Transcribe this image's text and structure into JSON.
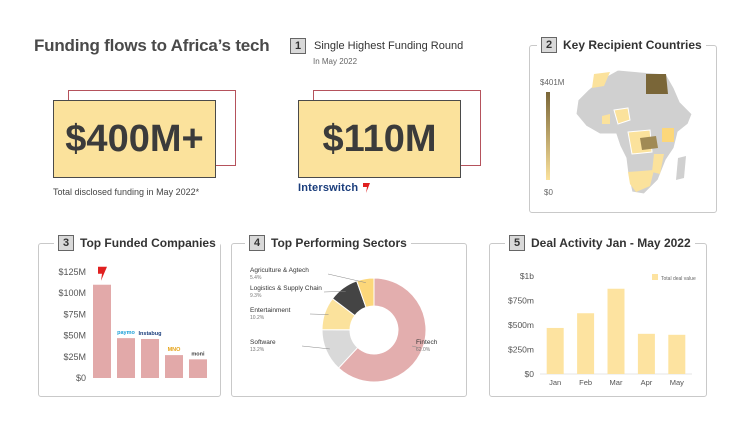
{
  "page": {
    "title": "Funding flows to Africa’s tech"
  },
  "total": {
    "value": "$400M+",
    "caption": "Total disclosed funding in May 2022*"
  },
  "round": {
    "number": "1",
    "title": "Single Highest Funding Round",
    "subtitle": "In May 2022",
    "value": "$110M",
    "company_logo_text": "Interswitch"
  },
  "countries": {
    "number": "2",
    "title": "Key Recipient Countries",
    "legend_max": "$401M",
    "legend_min": "$0",
    "colors": {
      "low": "#fbe29c",
      "high": "#7a6638",
      "none": "#d0d0d0"
    }
  },
  "companies": {
    "number": "3",
    "title": "Top Funded Companies",
    "logo_labels": [
      "paymo",
      "Instabug",
      "MNO",
      "moni"
    ]
  },
  "sectors": {
    "number": "4",
    "title": "Top Performing Sectors"
  },
  "deals": {
    "number": "5",
    "title": "Deal Activity Jan - May 2022",
    "legend": "Total deal value"
  },
  "chart_data": [
    {
      "type": "bar",
      "id": "top-funded-companies",
      "categories": [
        "Interswitch",
        "Paymo",
        "Instabug",
        "MNO",
        "Moni"
      ],
      "values": [
        110,
        47,
        46,
        27,
        22
      ],
      "ylim": [
        0,
        125
      ],
      "yticks": [
        "$0",
        "$25M",
        "$50M",
        "$75M",
        "$100M",
        "$125M"
      ],
      "ytick_values": [
        0,
        25,
        50,
        75,
        100,
        125
      ],
      "color": "#e2a9a9"
    },
    {
      "type": "pie",
      "id": "top-performing-sectors",
      "slices": [
        {
          "label": "Fintech",
          "pct_label": "62.0%",
          "value": 62.0,
          "color": "#e3aeae"
        },
        {
          "label": "Software",
          "pct_label": "13.2%",
          "value": 13.2,
          "color": "#d9d9d9"
        },
        {
          "label": "Entertainment",
          "pct_label": "10.2%",
          "value": 10.2,
          "color": "#fbe29c"
        },
        {
          "label": "Logistics & Supply Chain",
          "pct_label": "9.3%",
          "value": 9.3,
          "color": "#444444"
        },
        {
          "label": "Agriculture & Agtech",
          "pct_label": "5.4%",
          "value": 5.4,
          "color": "#fcd77a"
        }
      ]
    },
    {
      "type": "bar",
      "id": "deal-activity",
      "categories": [
        "Jan",
        "Feb",
        "Mar",
        "Apr",
        "May"
      ],
      "values": [
        470,
        620,
        870,
        410,
        400
      ],
      "ylim": [
        0,
        1000
      ],
      "yticks": [
        "$0",
        "$250m",
        "$500m",
        "$750m",
        "$1b"
      ],
      "ytick_values": [
        0,
        250,
        500,
        750,
        1000
      ],
      "color": "#fde3a0"
    }
  ]
}
